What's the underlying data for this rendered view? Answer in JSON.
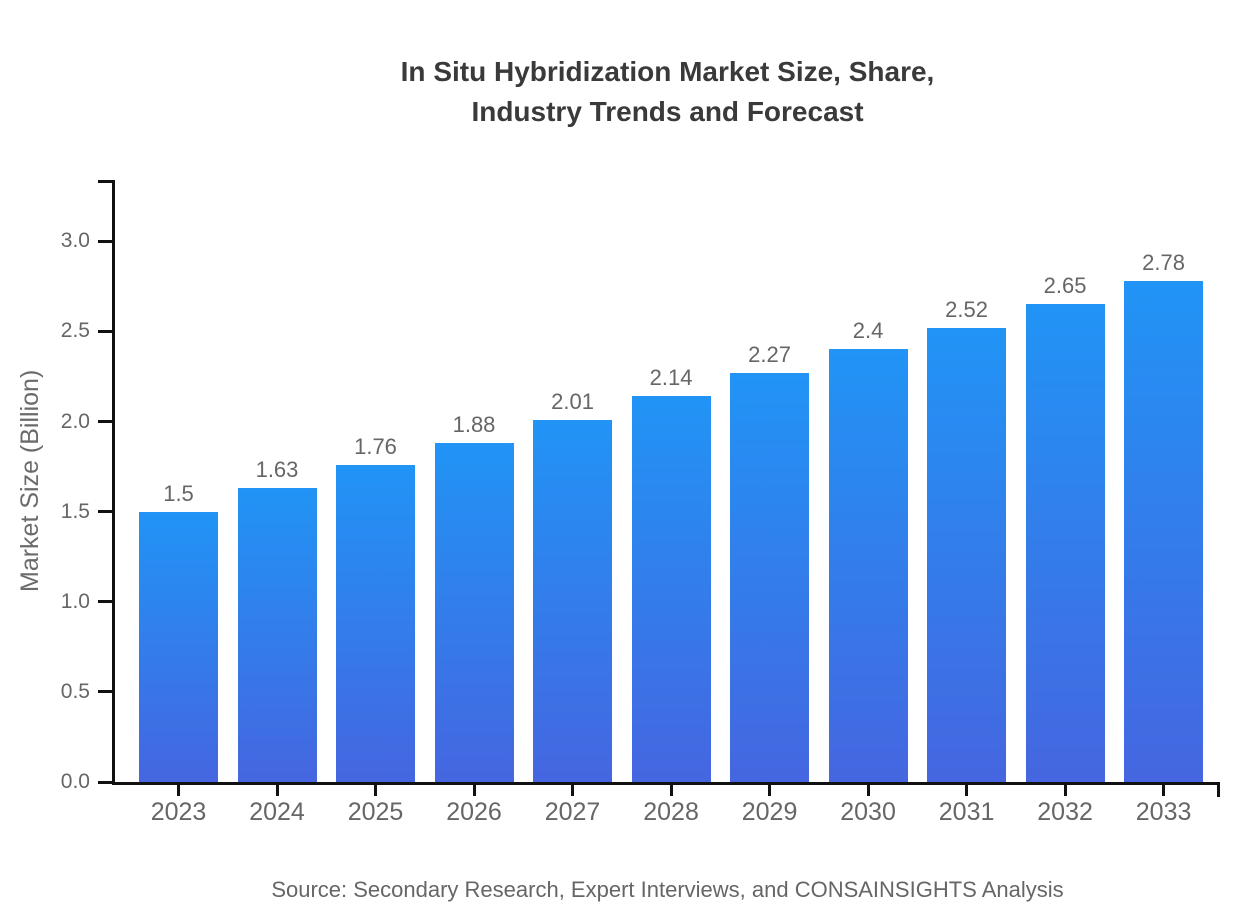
{
  "chart_data": {
    "type": "bar",
    "title": "In Situ Hybridization Market Size, Share,\nIndustry Trends and Forecast",
    "categories": [
      "2023",
      "2024",
      "2025",
      "2026",
      "2027",
      "2028",
      "2029",
      "2030",
      "2031",
      "2032",
      "2033"
    ],
    "values": [
      1.5,
      1.63,
      1.76,
      1.88,
      2.01,
      2.14,
      2.27,
      2.4,
      2.52,
      2.65,
      2.78
    ],
    "value_labels": [
      "1.5",
      "1.63",
      "1.76",
      "1.88",
      "2.01",
      "2.14",
      "2.27",
      "2.4",
      "2.52",
      "2.65",
      "2.78"
    ],
    "xlabel": "",
    "ylabel": "Market Size (Billion)",
    "ylim": [
      0,
      3.34
    ],
    "yticks": [
      0.0,
      0.5,
      1.0,
      1.5,
      2.0,
      2.5,
      3.0
    ],
    "ytick_labels": [
      "0.0",
      "0.5",
      "1.0",
      "1.5",
      "2.0",
      "2.5",
      "3.0"
    ],
    "grid": false,
    "legend": "none",
    "bar_color_top": "#2194f6",
    "bar_color_bottom": "#4566e0",
    "source_note": "Source: Secondary Research, Expert Interviews, and CONSAINSIGHTS Analysis"
  },
  "colors": {
    "title": "#3a3a3a",
    "axis": "#111111",
    "tick_label": "#666666",
    "value_label": "#666666"
  }
}
